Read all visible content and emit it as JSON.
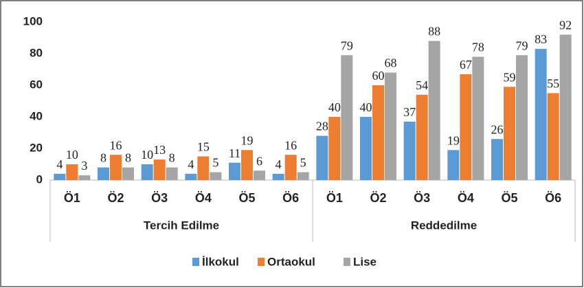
{
  "chart_data": {
    "type": "bar",
    "categories": [
      "Ö1",
      "Ö2",
      "Ö3",
      "Ö4",
      "Ö5",
      "Ö6",
      "Ö1",
      "Ö2",
      "Ö3",
      "Ö4",
      "Ö5",
      "Ö6"
    ],
    "category_groups": [
      "Tercih Edilme",
      "Reddedilme"
    ],
    "series": [
      {
        "name": "İlkokul",
        "color": "#5b9bd5",
        "values": [
          4,
          8,
          10,
          4,
          11,
          4,
          28,
          40,
          37,
          19,
          26,
          83
        ]
      },
      {
        "name": "Ortaokul",
        "color": "#ed7d31",
        "values": [
          10,
          16,
          13,
          15,
          19,
          16,
          40,
          60,
          54,
          67,
          59,
          55
        ]
      },
      {
        "name": "Lise",
        "color": "#a5a5a5",
        "values": [
          3,
          8,
          8,
          5,
          6,
          5,
          79,
          68,
          88,
          78,
          79,
          92
        ]
      }
    ],
    "ylim": [
      0,
      100
    ],
    "yticks": [
      0,
      20,
      40,
      60,
      80,
      100
    ],
    "grid": false,
    "legend": "bottom"
  }
}
